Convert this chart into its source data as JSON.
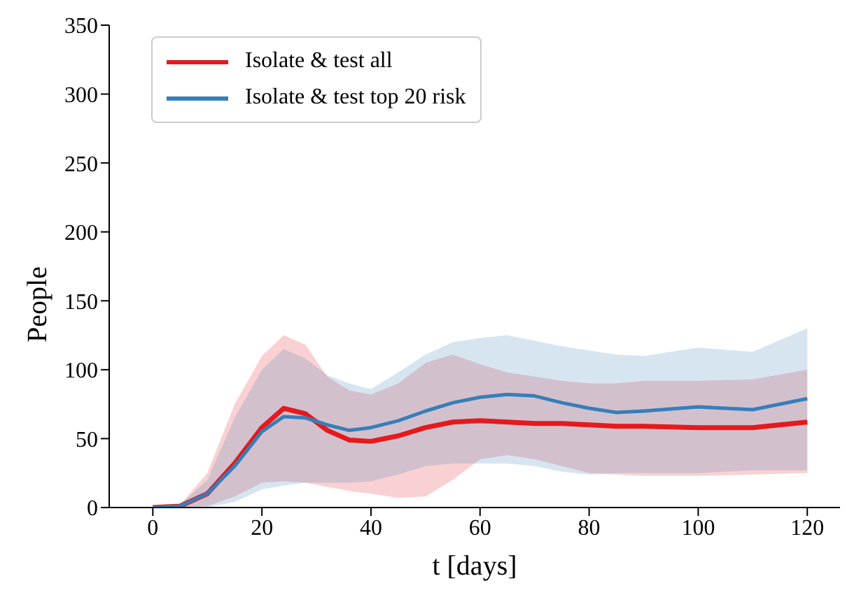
{
  "chart_data": {
    "type": "line",
    "xlabel": "t [days]",
    "ylabel": "People",
    "x": [
      0,
      5,
      10,
      15,
      20,
      24,
      28,
      32,
      36,
      40,
      45,
      50,
      55,
      60,
      65,
      70,
      75,
      80,
      85,
      90,
      100,
      110,
      120
    ],
    "series": [
      {
        "name": "Isolate & test all",
        "color": "#e41a1c",
        "values": [
          0,
          1,
          10,
          32,
          58,
          72,
          68,
          56,
          49,
          48,
          52,
          58,
          62,
          63,
          62,
          61,
          61,
          60,
          59,
          59,
          58,
          58,
          62
        ],
        "lower": [
          0,
          0,
          1,
          8,
          18,
          19,
          18,
          15,
          12,
          10,
          7,
          8,
          20,
          35,
          38,
          35,
          30,
          25,
          24,
          23,
          23,
          24,
          25
        ],
        "upper": [
          0,
          2,
          25,
          75,
          110,
          125,
          118,
          95,
          85,
          82,
          90,
          105,
          111,
          104,
          98,
          95,
          92,
          90,
          90,
          92,
          92,
          93,
          100
        ]
      },
      {
        "name": "Isolate & test top 20 risk",
        "color": "#377eb8",
        "values": [
          0,
          1,
          10,
          30,
          55,
          66,
          65,
          60,
          56,
          58,
          63,
          70,
          76,
          80,
          82,
          81,
          76,
          72,
          69,
          70,
          73,
          71,
          79
        ],
        "lower": [
          0,
          0,
          0,
          4,
          13,
          16,
          18,
          18,
          18,
          19,
          24,
          30,
          32,
          32,
          32,
          30,
          26,
          24,
          25,
          25,
          25,
          27,
          27
        ],
        "upper": [
          0,
          2,
          20,
          65,
          100,
          115,
          108,
          96,
          90,
          86,
          98,
          111,
          120,
          123,
          125,
          121,
          117,
          114,
          111,
          110,
          116,
          113,
          130
        ]
      }
    ],
    "xlim": [
      -8,
      126
    ],
    "ylim": [
      0,
      350
    ],
    "xticks": [
      0,
      20,
      40,
      60,
      80,
      100,
      120
    ],
    "yticks": [
      0,
      50,
      100,
      150,
      200,
      250,
      300,
      350
    ],
    "grid": false,
    "legend": "top left",
    "marker": "none",
    "line_style": "solid"
  }
}
